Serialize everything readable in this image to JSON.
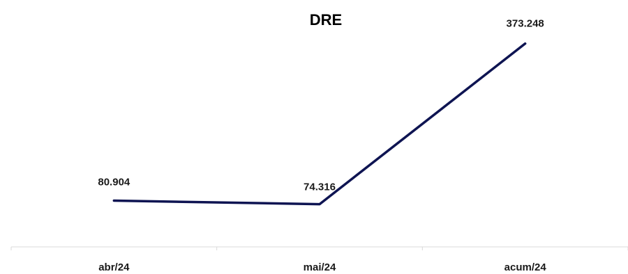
{
  "chart_data": {
    "type": "line",
    "title": "DRE",
    "xlabel": "",
    "ylabel": "",
    "categories": [
      "abr/24",
      "mai/24",
      "acum/24"
    ],
    "series": [
      {
        "values": [
          80904,
          74316,
          373248
        ],
        "labels": [
          "80.904",
          "74.316",
          "373.248"
        ],
        "color": "#0e1452"
      }
    ],
    "ylim": [
      0,
      400000
    ],
    "grid": false,
    "legend": "none",
    "axis_color": "#d9d9d9"
  }
}
